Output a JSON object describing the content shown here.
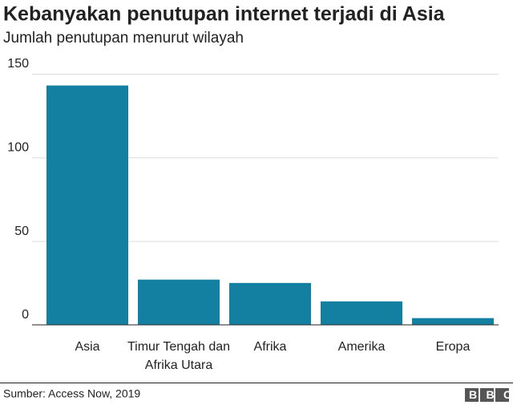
{
  "chart_data": {
    "type": "bar",
    "title": "Kebanyakan penutupan internet terjadi di Asia",
    "subtitle": "Jumlah penutupan menurut wilayah",
    "categories": [
      "Asia",
      "Timur Tengah dan Afrika Utara",
      "Afrika",
      "Amerika",
      "Eropa"
    ],
    "values": [
      143,
      27,
      25,
      14,
      4
    ],
    "color": "#1380a1",
    "ylim": [
      0,
      150
    ],
    "yticks": [
      0,
      50,
      100,
      150
    ],
    "grid": true,
    "source": "Sumber: Access Now, 2019",
    "logo": "BBC"
  }
}
